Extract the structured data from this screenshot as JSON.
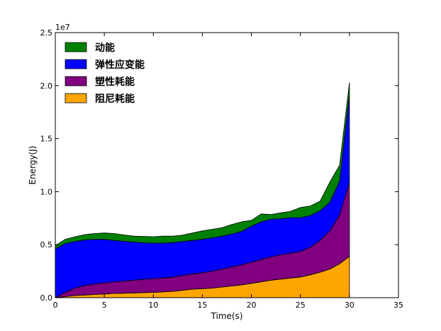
{
  "chart_data": {
    "type": "area",
    "stacked": true,
    "xlabel": "Time(s)",
    "ylabel": "Energy(J)",
    "y_offset_label": "1e7",
    "xlim": [
      0,
      35
    ],
    "ylim": [
      0,
      25000000
    ],
    "x_ticks": [
      0,
      5,
      10,
      15,
      20,
      25,
      30,
      35
    ],
    "x_tick_labels": [
      "0",
      "5",
      "10",
      "15",
      "20",
      "25",
      "30",
      "35"
    ],
    "y_ticks": [
      0,
      5000000,
      10000000,
      15000000,
      20000000,
      25000000
    ],
    "y_tick_labels": [
      "0.0",
      "0.5",
      "1.0",
      "1.5",
      "2.0",
      "2.5"
    ],
    "grid": false,
    "legend_position": "top-left",
    "x": [
      0,
      1,
      2,
      3,
      4,
      5,
      6,
      7,
      8,
      9,
      10,
      11,
      12,
      13,
      14,
      15,
      16,
      17,
      18,
      19,
      20,
      21,
      22,
      23,
      24,
      25,
      26,
      27,
      28,
      29,
      30
    ],
    "series": [
      {
        "name": "阻尼耗能",
        "color": "#FFA500",
        "values": [
          0,
          100000,
          200000,
          250000,
          300000,
          350000,
          400000,
          420000,
          450000,
          480000,
          500000,
          550000,
          600000,
          700000,
          800000,
          850000,
          900000,
          1000000,
          1100000,
          1200000,
          1350000,
          1500000,
          1650000,
          1750000,
          1850000,
          1950000,
          2150000,
          2400000,
          2700000,
          3200000,
          3900000
        ]
      },
      {
        "name": "塑性耗能",
        "color": "#800080",
        "values": [
          0,
          400000,
          700000,
          900000,
          1000000,
          1050000,
          1100000,
          1150000,
          1200000,
          1250000,
          1300000,
          1300000,
          1350000,
          1400000,
          1450000,
          1500000,
          1600000,
          1700000,
          1800000,
          1900000,
          2000000,
          2100000,
          2200000,
          2300000,
          2350000,
          2400000,
          2600000,
          3000000,
          3600000,
          4600000,
          7000000
        ]
      },
      {
        "name": "弹性应变能",
        "color": "#0000FF",
        "values": [
          4600000,
          4600000,
          4400000,
          4300000,
          4200000,
          4100000,
          3900000,
          3750000,
          3600000,
          3450000,
          3350000,
          3300000,
          3250000,
          3200000,
          3150000,
          3150000,
          3150000,
          3100000,
          3100000,
          3150000,
          3400000,
          3550000,
          3550000,
          3400000,
          3350000,
          3200000,
          3000000,
          2800000,
          2700000,
          3200000,
          8300000
        ]
      },
      {
        "name": "动能",
        "color": "#008000",
        "values": [
          300000,
          400000,
          450000,
          500000,
          550000,
          600000,
          650000,
          600000,
          550000,
          600000,
          600000,
          650000,
          600000,
          600000,
          700000,
          800000,
          800000,
          800000,
          900000,
          900000,
          550000,
          750000,
          450000,
          550000,
          600000,
          950000,
          900000,
          900000,
          1900000,
          1500000,
          1100000
        ]
      }
    ],
    "legend_order": [
      "动能",
      "弹性应变能",
      "塑性耗能",
      "阻尼耗能"
    ]
  }
}
